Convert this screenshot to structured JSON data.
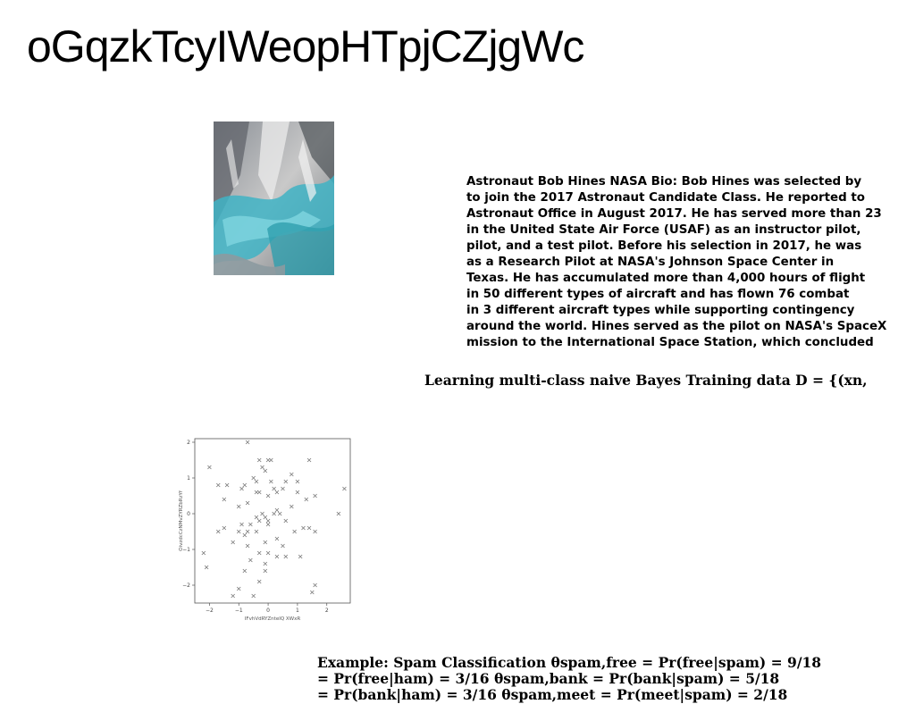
{
  "title": "oGqzkTcyIWeopHTpjCZjgWc",
  "photo": {
    "alt": "blue and grey abstract texture photo"
  },
  "bio": {
    "lines": [
      "Astronaut Bob Hines NASA Bio: Bob Hines was selected by",
      "to join the 2017 Astronaut Candidate Class. He reported to",
      "Astronaut Office in August 2017. He has served more than 23",
      "in the United State Air Force (USAF) as an instructor pilot,",
      "pilot, and a test pilot. Before his selection in 2017, he was",
      "as a Research Pilot at NASA's Johnson Space Center in",
      "Texas. He has accumulated more than 4,000 hours of flight",
      "in 50 different types of aircraft and has flown 76 combat",
      "in 3 different aircraft types while supporting contingency",
      "around the world. Hines served as the pilot on NASA's SpaceX",
      "mission to the International Space Station, which concluded"
    ]
  },
  "bayes_line": "Learning multi-class naive Bayes Training data D = {(xn,",
  "example": {
    "lines": [
      "Example: Spam Classification θspam,free = Pr(free|spam) = 9/18",
      "= Pr(free|ham) = 3/16 θspam,bank = Pr(bank|spam) = 5/18",
      "= Pr(bank|ham) = 3/16 θspam,meet = Pr(meet|spam) = 2/18"
    ]
  },
  "chart_data": {
    "type": "scatter",
    "xlabel": "IFvhVdRYZnteIQ XWxR",
    "ylabel": "OivzdcCzNMvZYRZbRzYf",
    "xlim": [
      -2.5,
      2.8
    ],
    "ylim": [
      -2.5,
      2.1
    ],
    "xticks": [
      -2,
      -1,
      0,
      1,
      2
    ],
    "yticks": [
      2,
      1,
      0,
      -1,
      -2
    ],
    "marker": "x",
    "color": "#777777",
    "points": [
      [
        -0.7,
        2.0
      ],
      [
        -2.0,
        1.3
      ],
      [
        -0.3,
        1.5
      ],
      [
        0.0,
        1.5
      ],
      [
        0.1,
        1.5
      ],
      [
        1.4,
        1.5
      ],
      [
        -0.2,
        1.3
      ],
      [
        -0.1,
        1.2
      ],
      [
        0.8,
        1.1
      ],
      [
        -0.8,
        0.8
      ],
      [
        -1.7,
        0.8
      ],
      [
        -1.4,
        0.8
      ],
      [
        -0.5,
        1.0
      ],
      [
        -0.4,
        0.9
      ],
      [
        0.1,
        0.9
      ],
      [
        1.0,
        0.9
      ],
      [
        0.6,
        0.9
      ],
      [
        -0.3,
        0.6
      ],
      [
        -0.4,
        0.6
      ],
      [
        0.3,
        0.6
      ],
      [
        0.5,
        0.7
      ],
      [
        -0.9,
        0.7
      ],
      [
        0.2,
        0.7
      ],
      [
        1.0,
        0.6
      ],
      [
        1.6,
        0.5
      ],
      [
        2.6,
        0.7
      ],
      [
        -1.5,
        0.4
      ],
      [
        0.0,
        0.5
      ],
      [
        -0.7,
        0.3
      ],
      [
        1.3,
        0.4
      ],
      [
        -1.0,
        0.2
      ],
      [
        0.8,
        0.2
      ],
      [
        0.3,
        0.1
      ],
      [
        -0.2,
        0.0
      ],
      [
        0.2,
        0.0
      ],
      [
        0.4,
        0.0
      ],
      [
        2.4,
        0.0
      ],
      [
        -0.4,
        -0.1
      ],
      [
        -0.1,
        -0.1
      ],
      [
        0.0,
        -0.2
      ],
      [
        -0.3,
        -0.2
      ],
      [
        0.6,
        -0.2
      ],
      [
        -0.6,
        -0.3
      ],
      [
        -0.9,
        -0.3
      ],
      [
        -0.7,
        -0.5
      ],
      [
        0.0,
        -0.3
      ],
      [
        -1.5,
        -0.4
      ],
      [
        1.2,
        -0.4
      ],
      [
        1.4,
        -0.4
      ],
      [
        1.6,
        -0.5
      ],
      [
        -1.7,
        -0.5
      ],
      [
        0.9,
        -0.5
      ],
      [
        -1.0,
        -0.5
      ],
      [
        -0.8,
        -0.6
      ],
      [
        -0.4,
        -0.5
      ],
      [
        0.3,
        -0.7
      ],
      [
        -0.1,
        -0.8
      ],
      [
        0.5,
        -0.9
      ],
      [
        -1.2,
        -0.8
      ],
      [
        -0.7,
        -0.9
      ],
      [
        -2.2,
        -1.1
      ],
      [
        0.0,
        -1.1
      ],
      [
        -0.3,
        -1.1
      ],
      [
        0.6,
        -1.2
      ],
      [
        1.1,
        -1.2
      ],
      [
        -0.6,
        -1.3
      ],
      [
        -2.1,
        -1.5
      ],
      [
        -0.1,
        -1.4
      ],
      [
        0.3,
        -1.2
      ],
      [
        -0.8,
        -1.6
      ],
      [
        -0.1,
        -1.6
      ],
      [
        -0.3,
        -1.9
      ],
      [
        -1.0,
        -2.1
      ],
      [
        1.6,
        -2.0
      ],
      [
        -1.2,
        -2.3
      ],
      [
        -0.5,
        -2.3
      ],
      [
        1.5,
        -2.2
      ]
    ]
  }
}
